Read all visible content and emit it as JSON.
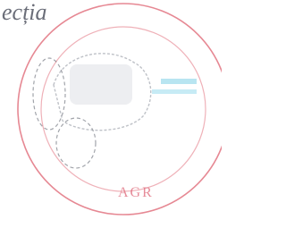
{
  "handwriting": {
    "text": "ecția"
  },
  "stamp": {
    "ring_text": "AGR"
  }
}
